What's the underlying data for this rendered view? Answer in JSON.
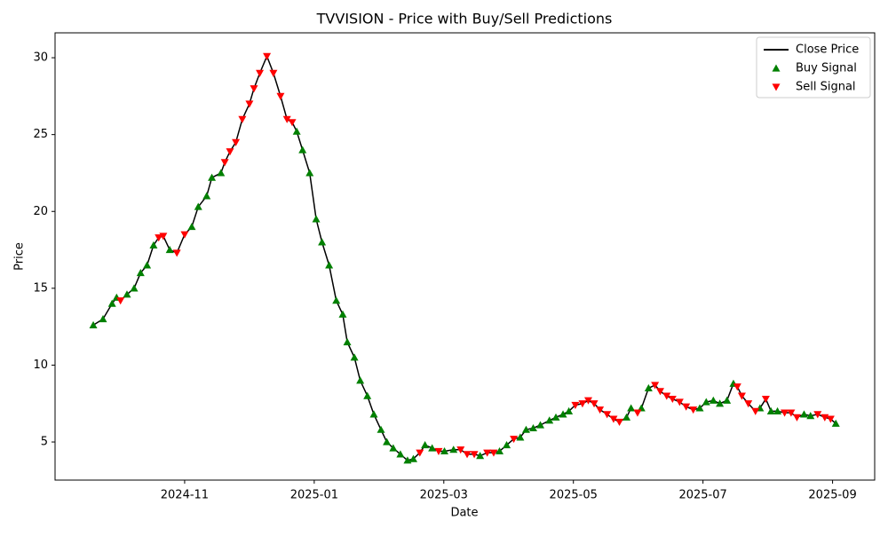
{
  "chart_data": {
    "type": "line",
    "title": "TVVISION - Price with Buy/Sell Predictions",
    "x_label": "Date",
    "y_label": "Price",
    "xlim": [
      9.0,
      21.65
    ],
    "ylim": [
      2.52,
      31.62
    ],
    "xticks": [
      {
        "value": 11,
        "label": "2024-11"
      },
      {
        "value": 13,
        "label": "2025-01"
      },
      {
        "value": 15,
        "label": "2025-03"
      },
      {
        "value": 17,
        "label": "2025-05"
      },
      {
        "value": 19,
        "label": "2025-07"
      },
      {
        "value": 21,
        "label": "2025-09"
      }
    ],
    "yticks": [
      5,
      10,
      15,
      20,
      25,
      30
    ],
    "grid": false,
    "legend": "upper right",
    "series": [
      {
        "name": "Close Price",
        "kind": "line",
        "color": "#000000",
        "x": [
          9.59,
          9.74,
          9.88,
          9.95,
          10.01,
          10.11,
          10.22,
          10.32,
          10.42,
          10.52,
          10.6,
          10.67,
          10.77,
          10.88,
          11.0,
          11.11,
          11.21,
          11.34,
          11.42,
          11.56,
          11.62,
          11.7,
          11.79,
          11.89,
          12.0,
          12.07,
          12.16,
          12.27,
          12.37,
          12.48,
          12.58,
          12.66,
          12.73,
          12.82,
          12.93,
          13.03,
          13.12,
          13.23,
          13.34,
          13.44,
          13.51,
          13.62,
          13.71,
          13.82,
          13.92,
          14.03,
          14.12,
          14.22,
          14.33,
          14.44,
          14.53,
          14.63,
          14.71,
          14.82,
          14.92,
          15.01,
          15.15,
          15.26,
          15.36,
          15.47,
          15.56,
          15.67,
          15.77,
          15.86,
          15.97,
          16.08,
          16.18,
          16.27,
          16.38,
          16.49,
          16.63,
          16.73,
          16.84,
          16.93,
          17.03,
          17.14,
          17.23,
          17.32,
          17.41,
          17.52,
          17.62,
          17.71,
          17.82,
          17.89,
          17.99,
          18.05,
          18.16,
          18.26,
          18.34,
          18.44,
          18.53,
          18.64,
          18.74,
          18.85,
          18.95,
          19.05,
          19.16,
          19.26,
          19.37,
          19.47,
          19.53,
          19.6,
          19.7,
          19.81,
          19.88,
          19.97,
          20.05,
          20.15,
          20.26,
          20.36,
          20.45,
          20.56,
          20.66,
          20.77,
          20.88,
          20.97,
          21.05
        ],
        "values": [
          12.6,
          13.0,
          14.0,
          14.4,
          14.2,
          14.6,
          15.0,
          16.0,
          16.5,
          17.8,
          18.3,
          18.4,
          17.5,
          17.3,
          18.5,
          19.0,
          20.3,
          21.0,
          22.2,
          22.5,
          23.2,
          23.9,
          24.5,
          26.0,
          27.0,
          28.0,
          29.0,
          30.1,
          29.0,
          27.5,
          26.0,
          25.8,
          25.2,
          24.0,
          22.5,
          19.5,
          18.0,
          16.5,
          14.2,
          13.3,
          11.5,
          10.5,
          9.0,
          8.0,
          6.8,
          5.8,
          5.0,
          4.6,
          4.2,
          3.8,
          3.9,
          4.3,
          4.8,
          4.6,
          4.4,
          4.4,
          4.5,
          4.5,
          4.2,
          4.2,
          4.1,
          4.3,
          4.3,
          4.4,
          4.8,
          5.2,
          5.3,
          5.8,
          5.9,
          6.1,
          6.4,
          6.6,
          6.8,
          7.0,
          7.4,
          7.5,
          7.7,
          7.5,
          7.1,
          6.8,
          6.5,
          6.3,
          6.6,
          7.2,
          6.9,
          7.2,
          8.5,
          8.7,
          8.3,
          8.0,
          7.8,
          7.6,
          7.3,
          7.1,
          7.2,
          7.6,
          7.7,
          7.5,
          7.7,
          8.8,
          8.6,
          8.0,
          7.5,
          7.0,
          7.2,
          7.8,
          7.0,
          7.0,
          6.9,
          6.9,
          6.6,
          6.8,
          6.7,
          6.8,
          6.6,
          6.5,
          6.2
        ]
      },
      {
        "name": "Buy Signal",
        "kind": "scatter",
        "marker": "triangle-up",
        "color": "#008000",
        "x": [
          9.59,
          9.74,
          9.88,
          9.95,
          10.11,
          10.22,
          10.32,
          10.42,
          10.52,
          10.77,
          11.11,
          11.21,
          11.34,
          11.42,
          11.56,
          12.73,
          12.82,
          12.93,
          13.03,
          13.12,
          13.23,
          13.34,
          13.44,
          13.51,
          13.62,
          13.71,
          13.82,
          13.92,
          14.03,
          14.12,
          14.22,
          14.33,
          14.44,
          14.53,
          14.71,
          14.82,
          15.01,
          15.15,
          15.56,
          15.86,
          15.97,
          16.18,
          16.27,
          16.38,
          16.49,
          16.63,
          16.73,
          16.84,
          16.93,
          17.82,
          17.89,
          18.05,
          18.16,
          18.95,
          19.05,
          19.16,
          19.26,
          19.37,
          19.47,
          19.88,
          20.05,
          20.15,
          20.56,
          20.66,
          21.05
        ],
        "values": [
          12.6,
          13.0,
          14.0,
          14.4,
          14.6,
          15.0,
          16.0,
          16.5,
          17.8,
          17.5,
          19.0,
          20.3,
          21.0,
          22.2,
          22.5,
          25.2,
          24.0,
          22.5,
          19.5,
          18.0,
          16.5,
          14.2,
          13.3,
          11.5,
          10.5,
          9.0,
          8.0,
          6.8,
          5.8,
          5.0,
          4.6,
          4.2,
          3.8,
          3.9,
          4.8,
          4.6,
          4.4,
          4.5,
          4.1,
          4.4,
          4.8,
          5.3,
          5.8,
          5.9,
          6.1,
          6.4,
          6.6,
          6.8,
          7.0,
          6.6,
          7.2,
          7.2,
          8.5,
          7.2,
          7.6,
          7.7,
          7.5,
          7.7,
          8.8,
          7.2,
          7.0,
          7.0,
          6.8,
          6.7,
          6.2
        ]
      },
      {
        "name": "Sell Signal",
        "kind": "scatter",
        "marker": "triangle-down",
        "color": "#ff0000",
        "x": [
          10.01,
          10.6,
          10.67,
          10.88,
          11.0,
          11.62,
          11.7,
          11.79,
          11.89,
          12.0,
          12.07,
          12.16,
          12.27,
          12.37,
          12.48,
          12.58,
          12.66,
          14.63,
          14.92,
          15.26,
          15.36,
          15.47,
          15.67,
          15.77,
          16.08,
          17.03,
          17.14,
          17.23,
          17.32,
          17.41,
          17.52,
          17.62,
          17.71,
          17.99,
          18.26,
          18.34,
          18.44,
          18.53,
          18.64,
          18.74,
          18.85,
          19.53,
          19.6,
          19.7,
          19.81,
          19.97,
          20.26,
          20.36,
          20.45,
          20.77,
          20.88,
          20.97
        ],
        "values": [
          14.2,
          18.3,
          18.4,
          17.3,
          18.5,
          23.2,
          23.9,
          24.5,
          26.0,
          27.0,
          28.0,
          29.0,
          30.1,
          29.0,
          27.5,
          26.0,
          25.8,
          4.3,
          4.4,
          4.5,
          4.2,
          4.2,
          4.3,
          4.3,
          5.2,
          7.4,
          7.5,
          7.7,
          7.5,
          7.1,
          6.8,
          6.5,
          6.3,
          6.9,
          8.7,
          8.3,
          8.0,
          7.8,
          7.6,
          7.3,
          7.1,
          8.6,
          8.0,
          7.5,
          7.0,
          7.8,
          6.9,
          6.9,
          6.6,
          6.8,
          6.6,
          6.5
        ]
      }
    ]
  }
}
